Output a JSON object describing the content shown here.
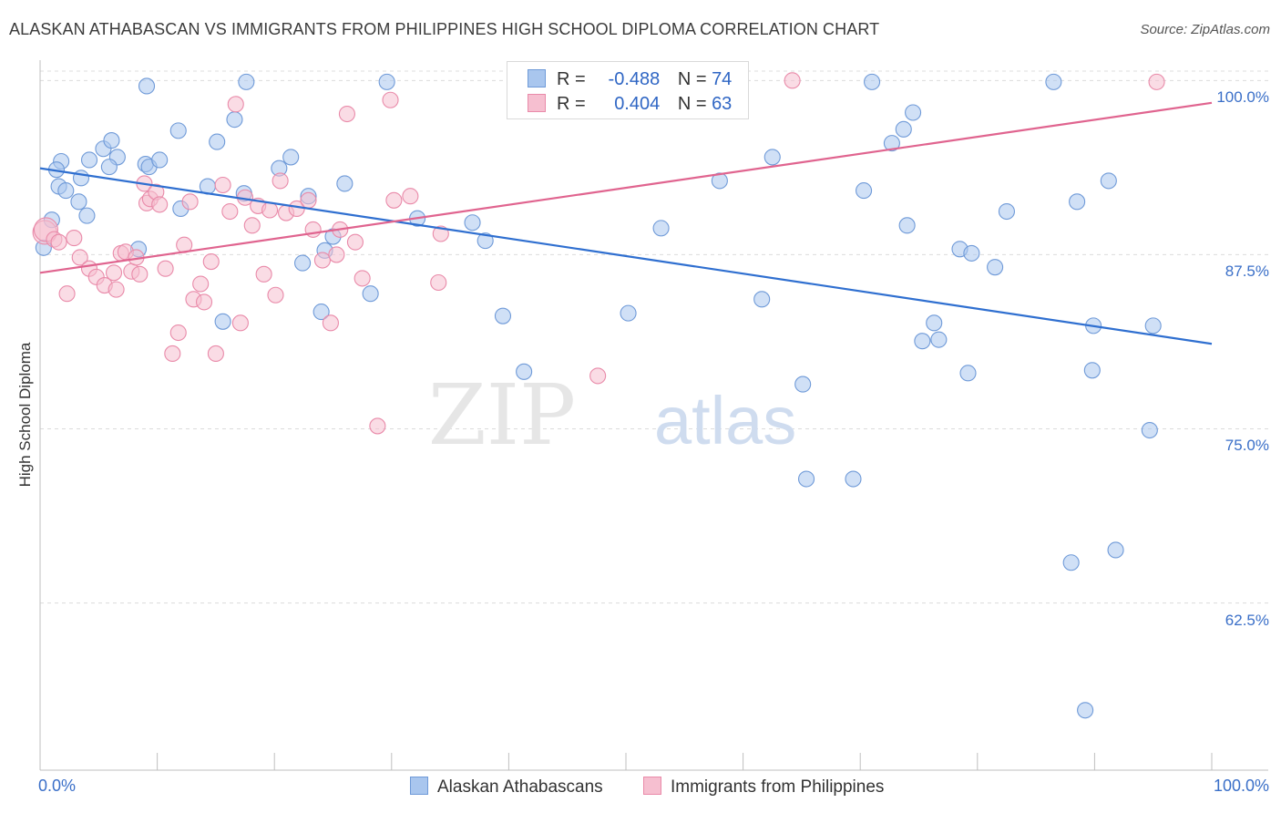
{
  "title": "ALASKAN ATHABASCAN VS IMMIGRANTS FROM PHILIPPINES HIGH SCHOOL DIPLOMA CORRELATION CHART",
  "source": "Source: ZipAtlas.com",
  "watermark": {
    "zip": "ZIP",
    "atlas": "atlas"
  },
  "stats": [
    {
      "r_label": "R =",
      "r_value": "-0.488",
      "n_label": "N =",
      "n_value": "74",
      "color": "#a9c6ee",
      "border": "#6f9ad8"
    },
    {
      "r_label": "R =",
      "r_value": "0.404",
      "n_label": "N =",
      "n_value": "63",
      "color": "#f6bfd0",
      "border": "#e98aa9"
    }
  ],
  "legend": [
    {
      "label": "Alaskan Athabascans",
      "color": "#a9c6ee",
      "border": "#6f9ad8"
    },
    {
      "label": "Immigrants from Philippines",
      "color": "#f6bfd0",
      "border": "#e98aa9"
    }
  ],
  "chart_data": {
    "type": "scatter",
    "title": "ALASKAN ATHABASCAN VS IMMIGRANTS FROM PHILIPPINES HIGH SCHOOL DIPLOMA CORRELATION CHART",
    "xlabel": "",
    "ylabel": "High School Diploma",
    "xlim": [
      0,
      100
    ],
    "ylim": [
      50.5,
      101.2
    ],
    "x_tick_labels": [
      "0.0%",
      "100.0%"
    ],
    "y_ticks": [
      100,
      87.5,
      75,
      62.5
    ],
    "y_tick_labels": [
      "100.0%",
      "87.5%",
      "75.0%",
      "62.5%"
    ],
    "grid": true,
    "legend_position": "bottom-center",
    "series": [
      {
        "name": "Alaskan Athabascans",
        "color": "#6f9ad8",
        "fill": "#a9c6ee",
        "trend_color": "#2f6fd0",
        "trend": {
          "x": [
            0,
            100
          ],
          "y": [
            93.7,
            81.1
          ]
        },
        "points": [
          [
            0.3,
            88.0
          ],
          [
            1.8,
            94.2
          ],
          [
            1.4,
            93.6
          ],
          [
            1.6,
            92.4
          ],
          [
            2.2,
            92.1
          ],
          [
            3.3,
            91.3
          ],
          [
            3.5,
            93.0
          ],
          [
            4.0,
            90.3
          ],
          [
            4.2,
            94.3
          ],
          [
            5.4,
            95.1
          ],
          [
            6.1,
            95.7
          ],
          [
            6.6,
            94.5
          ],
          [
            5.9,
            93.8
          ],
          [
            8.4,
            87.9
          ],
          [
            9.1,
            99.6
          ],
          [
            9.0,
            94.0
          ],
          [
            9.3,
            93.8
          ],
          [
            10.2,
            94.3
          ],
          [
            11.8,
            96.4
          ],
          [
            12.0,
            90.8
          ],
          [
            14.3,
            92.4
          ],
          [
            15.1,
            95.6
          ],
          [
            15.6,
            82.7
          ],
          [
            16.6,
            97.2
          ],
          [
            17.4,
            91.9
          ],
          [
            17.6,
            99.9
          ],
          [
            20.4,
            93.7
          ],
          [
            21.4,
            94.5
          ],
          [
            22.4,
            86.9
          ],
          [
            22.9,
            91.7
          ],
          [
            24.0,
            83.4
          ],
          [
            24.3,
            87.8
          ],
          [
            25.0,
            88.8
          ],
          [
            26.0,
            92.6
          ],
          [
            28.2,
            84.7
          ],
          [
            29.6,
            99.9
          ],
          [
            32.2,
            90.1
          ],
          [
            36.9,
            89.8
          ],
          [
            38.0,
            88.5
          ],
          [
            39.5,
            83.1
          ],
          [
            41.3,
            79.1
          ],
          [
            50.2,
            83.3
          ],
          [
            53.0,
            89.4
          ],
          [
            58.0,
            92.8
          ],
          [
            61.6,
            84.3
          ],
          [
            62.5,
            94.5
          ],
          [
            65.1,
            78.2
          ],
          [
            65.4,
            71.4
          ],
          [
            69.4,
            71.4
          ],
          [
            70.3,
            92.1
          ],
          [
            71.0,
            99.9
          ],
          [
            72.7,
            95.5
          ],
          [
            73.7,
            96.5
          ],
          [
            74.0,
            89.6
          ],
          [
            74.5,
            97.7
          ],
          [
            75.3,
            81.3
          ],
          [
            76.3,
            82.6
          ],
          [
            76.7,
            81.4
          ],
          [
            78.5,
            87.9
          ],
          [
            79.2,
            79.0
          ],
          [
            79.5,
            87.6
          ],
          [
            81.5,
            86.6
          ],
          [
            82.5,
            90.6
          ],
          [
            86.5,
            99.9
          ],
          [
            88.5,
            91.3
          ],
          [
            89.2,
            54.8
          ],
          [
            89.8,
            79.2
          ],
          [
            89.9,
            82.4
          ],
          [
            91.2,
            92.8
          ],
          [
            91.8,
            66.3
          ],
          [
            94.7,
            74.9
          ],
          [
            95.0,
            82.4
          ],
          [
            88.0,
            65.4
          ],
          [
            1.0,
            90.0
          ]
        ]
      },
      {
        "name": "Immigrants from Philippines",
        "color": "#e98aa9",
        "fill": "#f6bfd0",
        "trend_color": "#e0648f",
        "trend": {
          "x": [
            0,
            100
          ],
          "y": [
            86.2,
            98.4
          ]
        },
        "points": [
          [
            0.4,
            89.1
          ],
          [
            0.5,
            89.3
          ],
          [
            1.2,
            88.6
          ],
          [
            1.6,
            88.4
          ],
          [
            2.3,
            84.7
          ],
          [
            2.9,
            88.7
          ],
          [
            3.4,
            87.3
          ],
          [
            4.2,
            86.5
          ],
          [
            4.8,
            85.9
          ],
          [
            5.5,
            85.3
          ],
          [
            6.3,
            86.2
          ],
          [
            6.5,
            85.0
          ],
          [
            6.9,
            87.6
          ],
          [
            7.3,
            87.7
          ],
          [
            7.8,
            86.3
          ],
          [
            8.2,
            87.3
          ],
          [
            8.5,
            86.1
          ],
          [
            8.9,
            92.6
          ],
          [
            9.1,
            91.2
          ],
          [
            9.4,
            91.5
          ],
          [
            9.9,
            92.0
          ],
          [
            10.2,
            91.1
          ],
          [
            10.7,
            86.5
          ],
          [
            11.3,
            80.4
          ],
          [
            11.8,
            81.9
          ],
          [
            12.3,
            88.2
          ],
          [
            12.8,
            91.3
          ],
          [
            13.1,
            84.3
          ],
          [
            13.7,
            85.4
          ],
          [
            14.0,
            84.1
          ],
          [
            14.6,
            87.0
          ],
          [
            15.0,
            80.4
          ],
          [
            15.6,
            92.5
          ],
          [
            16.2,
            90.6
          ],
          [
            16.7,
            98.3
          ],
          [
            17.1,
            82.6
          ],
          [
            17.5,
            91.6
          ],
          [
            18.1,
            89.6
          ],
          [
            18.6,
            91.0
          ],
          [
            19.1,
            86.1
          ],
          [
            19.6,
            90.7
          ],
          [
            20.1,
            84.6
          ],
          [
            20.5,
            92.8
          ],
          [
            21.0,
            90.5
          ],
          [
            21.9,
            90.8
          ],
          [
            22.9,
            91.4
          ],
          [
            23.3,
            89.3
          ],
          [
            24.1,
            87.1
          ],
          [
            24.8,
            82.6
          ],
          [
            25.3,
            87.5
          ],
          [
            25.6,
            89.3
          ],
          [
            26.2,
            97.6
          ],
          [
            26.9,
            88.4
          ],
          [
            27.5,
            85.8
          ],
          [
            28.8,
            75.2
          ],
          [
            29.9,
            98.6
          ],
          [
            30.2,
            91.4
          ],
          [
            31.6,
            91.7
          ],
          [
            34.0,
            85.5
          ],
          [
            34.2,
            89.0
          ],
          [
            47.6,
            78.8
          ],
          [
            64.2,
            100.0
          ],
          [
            95.3,
            99.9
          ]
        ]
      }
    ]
  }
}
